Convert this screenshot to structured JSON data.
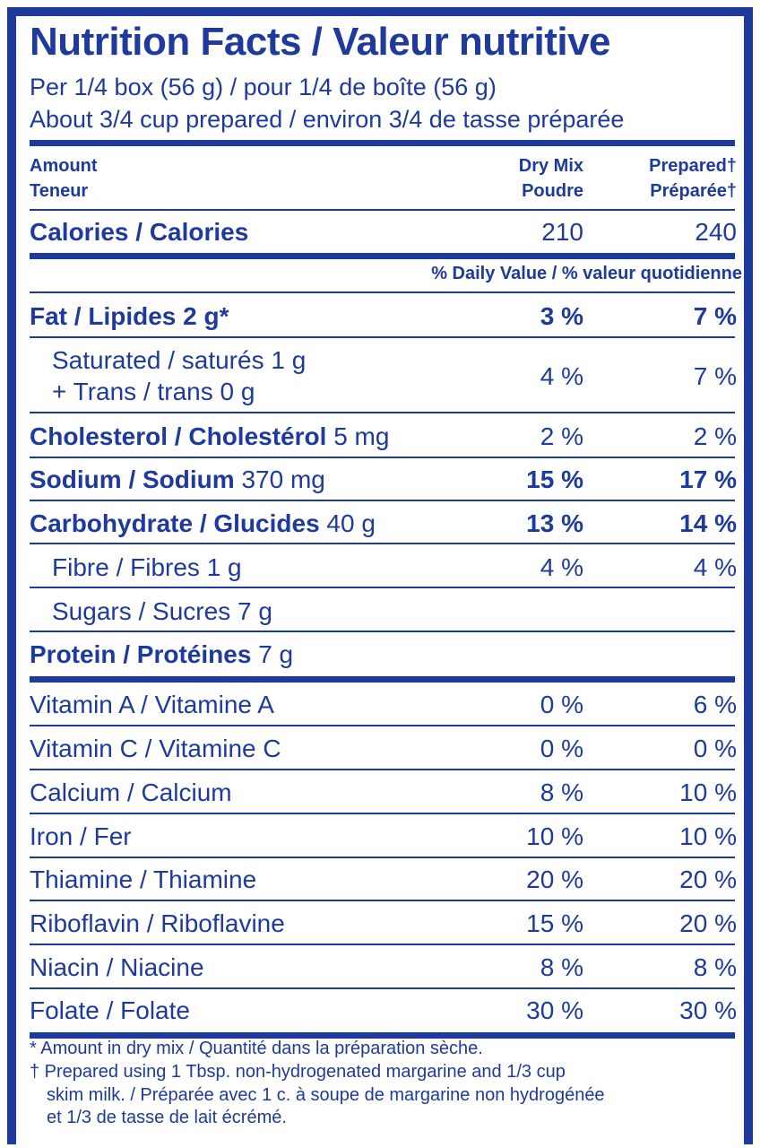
{
  "title": "Nutrition Facts / Valeur nutritive",
  "serving": {
    "line1": "Per 1/4 box (56 g) / pour 1/4 de boîte (56 g)",
    "line2": "About 3/4 cup prepared / environ 3/4 de tasse préparée"
  },
  "headers": {
    "amount_en": "Amount",
    "amount_fr": "Teneur",
    "col1_en": "Dry Mix",
    "col1_fr": "Poudre",
    "col2_en": "Prepared†",
    "col2_fr": "Préparée†"
  },
  "calories": {
    "label": "Calories / Calories",
    "dry": "210",
    "prepared": "240"
  },
  "daily_value_label": "% Daily Value / % valeur quotidienne",
  "nutrients": {
    "fat": {
      "label": "Fat / Lipides",
      "amount": "2 g*",
      "dry": "3 %",
      "prepared": "7 %"
    },
    "saturated": {
      "line1": "Saturated / saturés 1 g",
      "line2": "+ Trans / trans 0 g",
      "dry": "4 %",
      "prepared": "7 %"
    },
    "cholesterol": {
      "label": "Cholesterol / Cholestérol",
      "amount": "5 mg",
      "dry": "2 %",
      "prepared": "2 %"
    },
    "sodium": {
      "label": "Sodium / Sodium",
      "amount": "370 mg",
      "dry": "15 %",
      "prepared": "17 %"
    },
    "carbohydrate": {
      "label": "Carbohydrate / Glucides",
      "amount": "40 g",
      "dry": "13 %",
      "prepared": "14 %"
    },
    "fibre": {
      "label": "Fibre / Fibres 1 g",
      "dry": "4 %",
      "prepared": "4 %"
    },
    "sugars": {
      "label": "Sugars / Sucres 7 g"
    },
    "protein": {
      "label": "Protein / Protéines",
      "amount": "7 g"
    }
  },
  "vitamins": [
    {
      "label": "Vitamin A / Vitamine A",
      "dry": "0 %",
      "prepared": "6 %"
    },
    {
      "label": "Vitamin C / Vitamine C",
      "dry": "0 %",
      "prepared": "0 %"
    },
    {
      "label": "Calcium / Calcium",
      "dry": "8 %",
      "prepared": "10 %"
    },
    {
      "label": "Iron / Fer",
      "dry": "10 %",
      "prepared": "10 %"
    },
    {
      "label": "Thiamine / Thiamine",
      "dry": "20 %",
      "prepared": "20 %"
    },
    {
      "label": "Riboflavin / Riboflavine",
      "dry": "15 %",
      "prepared": "20 %"
    },
    {
      "label": "Niacin / Niacine",
      "dry": "8 %",
      "prepared": "8 %"
    },
    {
      "label": "Folate / Folate",
      "dry": "30 %",
      "prepared": "30 %"
    }
  ],
  "footnotes": {
    "star": "* Amount in dry mix / Quantité dans la préparation sèche.",
    "dagger1": "† Prepared using 1 Tbsp. non-hydrogenated margarine and 1/3 cup",
    "dagger2": "skim milk. / Préparée avec 1 c. à soupe de margarine non hydrogénée",
    "dagger3": "et 1/3 de tasse de lait écrémé."
  },
  "colors": {
    "ink": "#1d3a9c",
    "background": "#ffffff"
  }
}
